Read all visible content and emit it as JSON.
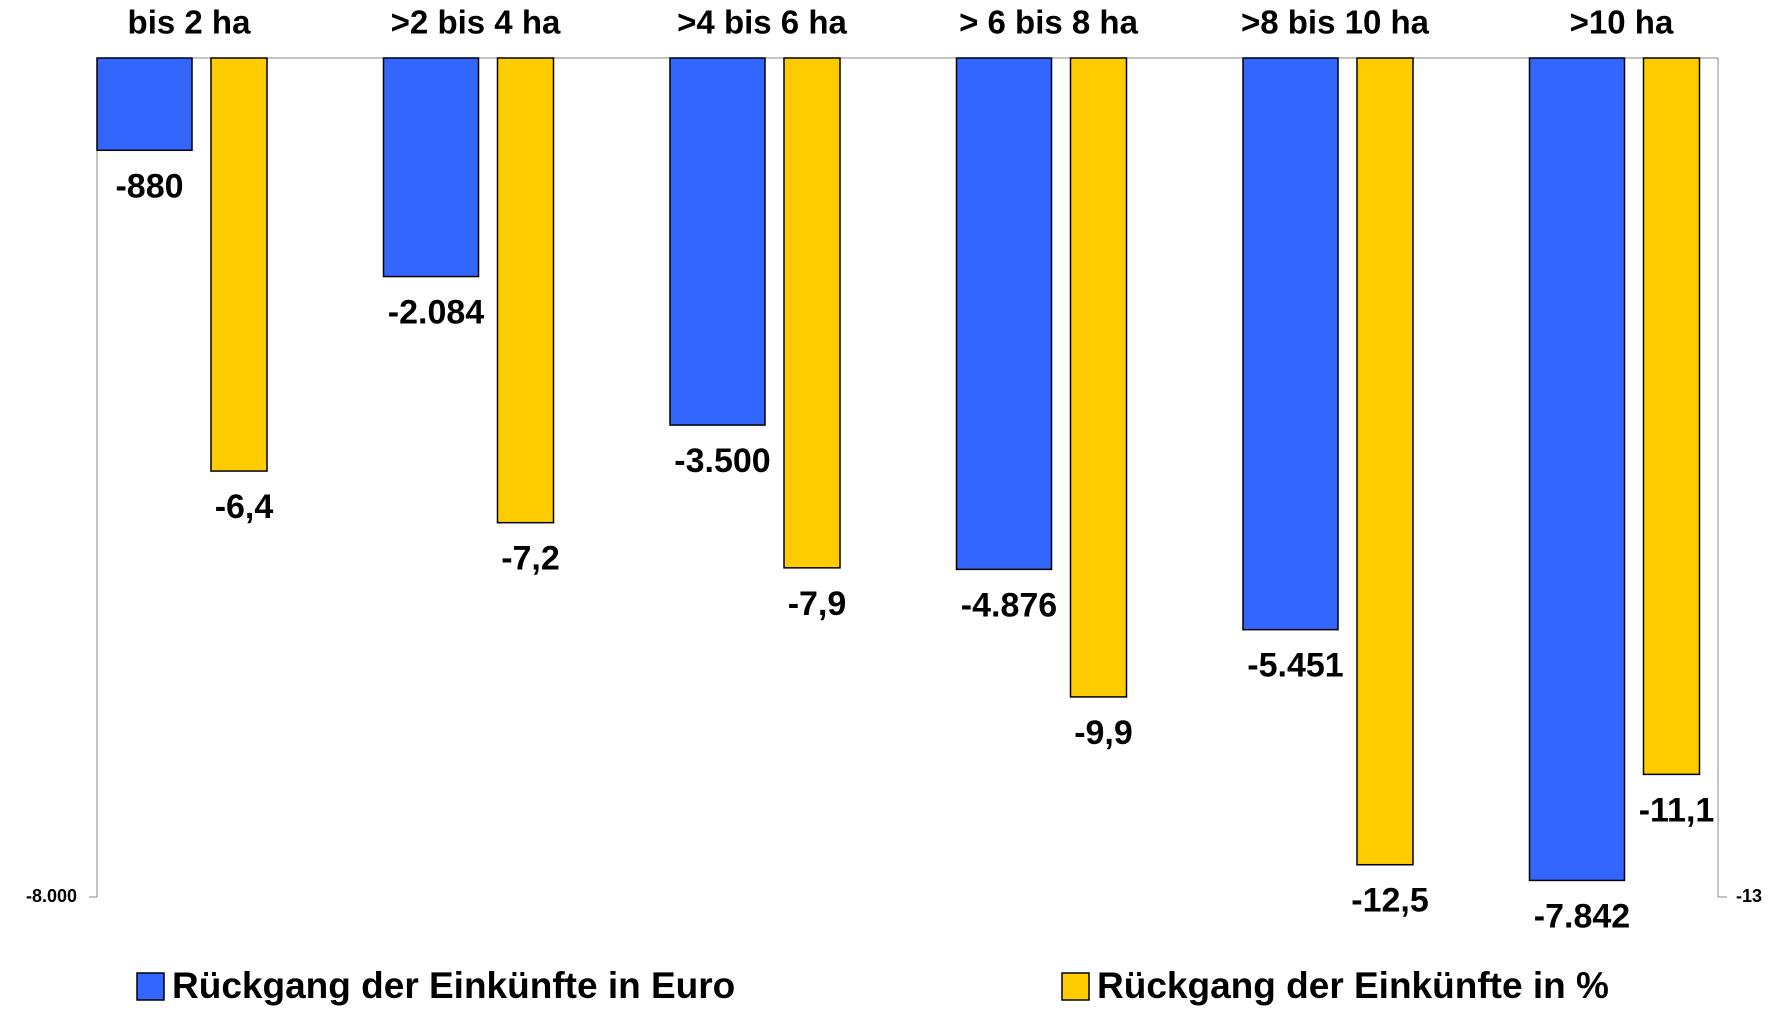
{
  "chart_data": {
    "type": "bar",
    "categories": [
      "bis 2 ha",
      ">2 bis 4 ha",
      ">4 bis 6 ha",
      "> 6 bis 8 ha",
      ">8 bis 10 ha",
      ">10 ha"
    ],
    "series": [
      {
        "name": "Rückgang der Einkünfte in Euro",
        "color": "#3366ff",
        "values": [
          -880,
          -2084,
          -3500,
          -4876,
          -5451,
          -7842
        ],
        "value_labels": [
          "-880",
          "-2.084",
          "-3.500",
          "-4.876",
          "-5.451",
          "-7.842"
        ]
      },
      {
        "name": "Rückgang der Einkünfte in %",
        "color": "#ffcc00",
        "axis": "y2",
        "values": [
          -6.4,
          -7.2,
          -7.9,
          -9.9,
          -12.5,
          -11.1
        ],
        "value_labels": [
          "-6,4",
          "-7,2",
          "-7,9",
          "-9,9",
          "-12,5",
          "-11,1"
        ]
      }
    ],
    "ylim": [
      -8000,
      0
    ],
    "yticks": [
      {
        "value": -8000,
        "label": "-8.000"
      }
    ],
    "y2lim": [
      -13,
      0
    ],
    "y2ticks": [
      -13
    ]
  }
}
